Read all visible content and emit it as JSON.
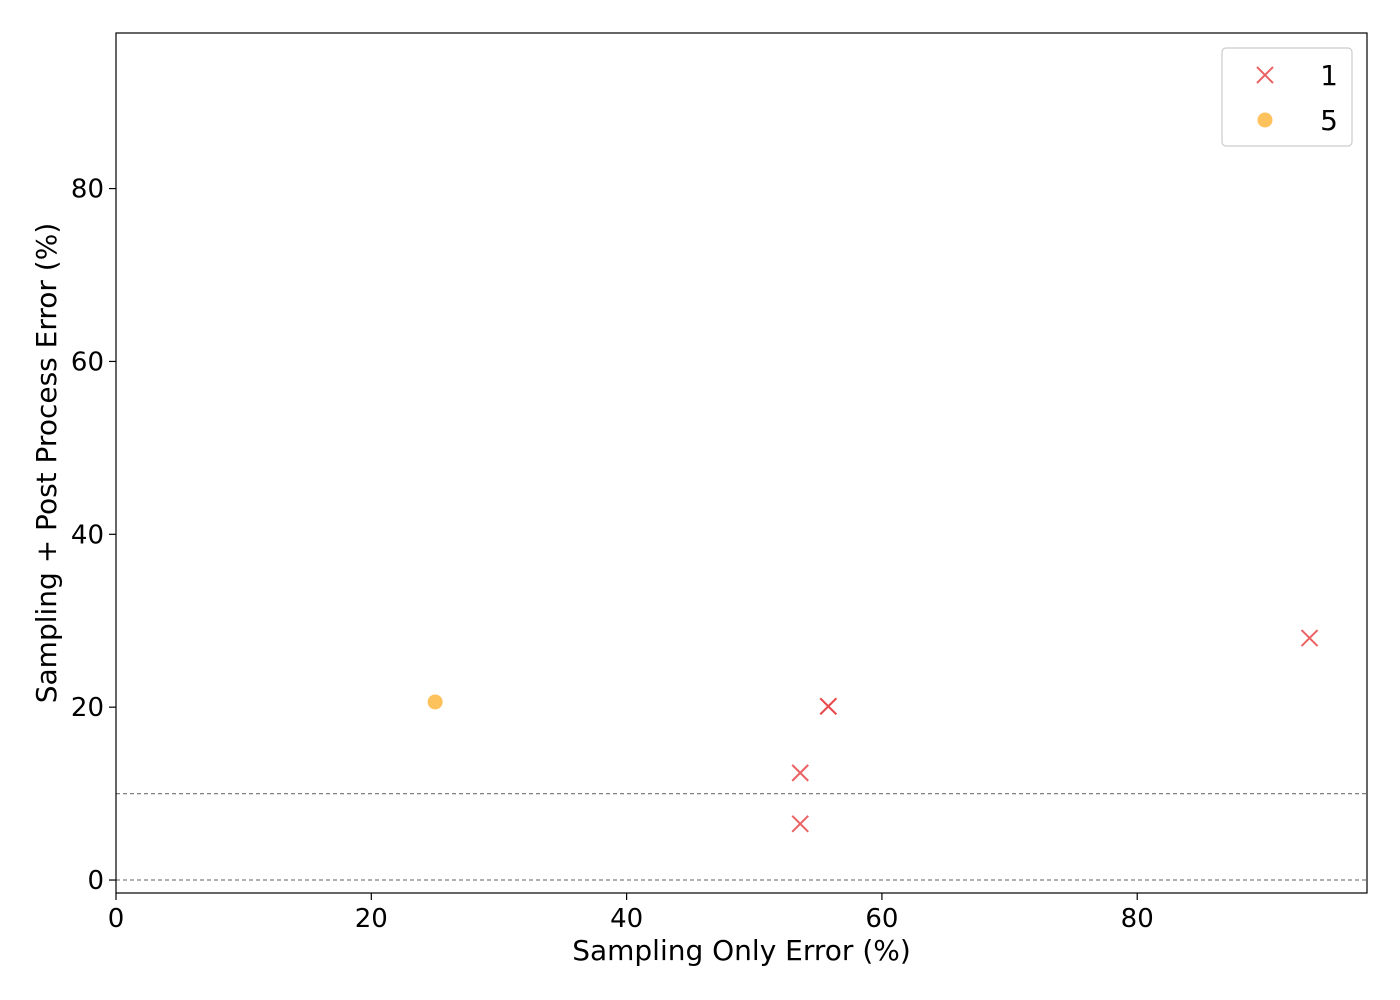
{
  "chart_data": {
    "type": "scatter",
    "title": "",
    "xlabel": "Sampling Only Error (%)",
    "ylabel": "Sampling + Post Process Error (%)",
    "xlim": [
      0,
      98
    ],
    "ylim": [
      -1.5,
      98
    ],
    "xticks": [
      0,
      20,
      40,
      60,
      80
    ],
    "yticks": [
      0,
      20,
      40,
      60,
      80
    ],
    "grid": false,
    "reference_lines": [
      0,
      10
    ],
    "legend_position": "top-right",
    "series": [
      {
        "name": "1",
        "marker": "x",
        "color": "#e8474a",
        "points": [
          {
            "x": 53.6,
            "y": 6.5
          },
          {
            "x": 53.6,
            "y": 12.4
          },
          {
            "x": 55.8,
            "y": 20.1
          },
          {
            "x": 55.8,
            "y": 20.1
          },
          {
            "x": 93.5,
            "y": 28.0
          }
        ]
      },
      {
        "name": "5",
        "marker": "circle",
        "color": "#fdb73e",
        "points": [
          {
            "x": 25.0,
            "y": 20.6
          }
        ]
      }
    ]
  }
}
